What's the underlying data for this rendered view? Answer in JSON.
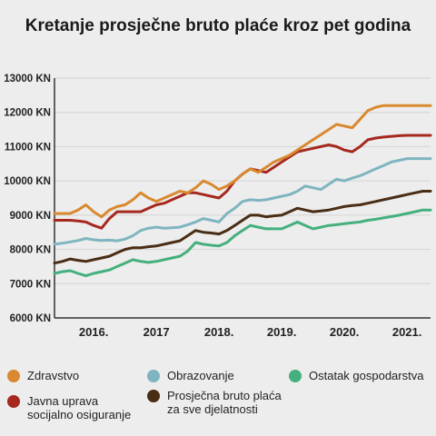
{
  "title": "Kretanje prosječne bruto plaće kroz pet godina",
  "colors": {
    "zdravstvo": "#d9892f",
    "obrazovanje": "#7fb5c0",
    "ostatak": "#45b07d",
    "javna": "#a6281f",
    "prosjek": "#4a2d15",
    "grid": "#d4d4d4",
    "axis": "#333333"
  },
  "legend": [
    {
      "key": "zdravstvo",
      "label": "Zdravstvo",
      "color": "#d9892f"
    },
    {
      "key": "obrazovanje",
      "label": "Obrazovanje",
      "color": "#7fb5c0"
    },
    {
      "key": "ostatak",
      "label": "Ostatak gospodarstva",
      "color": "#45b07d"
    },
    {
      "key": "javna",
      "label": "Javna uprava\nsocijalno osiguranje",
      "color": "#a6281f"
    },
    {
      "key": "prosjek",
      "label": "Prosječna bruto plaća\nza sve djelatnosti",
      "color": "#4a2d15"
    }
  ],
  "chart_data": {
    "type": "line",
    "title": "Kretanje prosječne bruto plaće kroz pet godina",
    "xlabel": "",
    "ylabel": "",
    "ylim": [
      6000,
      13000
    ],
    "xlim": [
      2015.375,
      2021.375
    ],
    "y_ticks": [
      6000,
      7000,
      8000,
      9000,
      10000,
      11000,
      12000,
      13000
    ],
    "y_tick_labels": [
      "6000 KN",
      "7000 KN",
      "8000 KN",
      "9000 KN",
      "10000 KN",
      "11000 KN",
      "12000 KN",
      "13000 KN"
    ],
    "x_ticks": [
      2016,
      2017,
      2018,
      2019,
      2020,
      2021
    ],
    "x_tick_labels": [
      "2016.",
      "2017",
      "2018.",
      "2019.",
      "2020.",
      "2021."
    ],
    "grid": "horizontal",
    "legend_position": "bottom",
    "x": [
      2015.375,
      2015.5,
      2015.625,
      2015.75,
      2015.875,
      2016.0,
      2016.125,
      2016.25,
      2016.375,
      2016.5,
      2016.625,
      2016.75,
      2016.875,
      2017.0,
      2017.125,
      2017.25,
      2017.375,
      2017.5,
      2017.625,
      2017.75,
      2017.875,
      2018.0,
      2018.125,
      2018.25,
      2018.375,
      2018.5,
      2018.625,
      2018.75,
      2018.875,
      2019.0,
      2019.125,
      2019.25,
      2019.375,
      2019.5,
      2019.625,
      2019.75,
      2019.875,
      2020.0,
      2020.125,
      2020.25,
      2020.375,
      2020.5,
      2020.625,
      2020.75,
      2020.875,
      2021.0,
      2021.125,
      2021.25,
      2021.375
    ],
    "series": [
      {
        "name": "Zdravstvo",
        "key": "zdravstvo",
        "values": [
          9050,
          9050,
          9050,
          9150,
          9300,
          9100,
          8950,
          9150,
          9250,
          9300,
          9450,
          9650,
          9500,
          9400,
          9500,
          9600,
          9700,
          9650,
          9800,
          10000,
          9900,
          9750,
          9850,
          10000,
          10200,
          10350,
          10250,
          10400,
          10550,
          10650,
          10750,
          10900,
          11050,
          11200,
          11350,
          11500,
          11650,
          11600,
          11550,
          11800,
          12050,
          12150,
          12200,
          12200,
          12200,
          12200,
          12200,
          12200,
          12200
        ]
      },
      {
        "name": "Obrazovanje",
        "key": "obrazovanje",
        "values": [
          8150,
          8180,
          8220,
          8260,
          8320,
          8280,
          8260,
          8270,
          8250,
          8300,
          8400,
          8550,
          8620,
          8650,
          8620,
          8630,
          8650,
          8720,
          8800,
          8900,
          8850,
          8800,
          9050,
          9200,
          9400,
          9450,
          9430,
          9450,
          9500,
          9550,
          9600,
          9700,
          9850,
          9800,
          9750,
          9900,
          10050,
          10000,
          10080,
          10150,
          10250,
          10350,
          10450,
          10550,
          10600,
          10650,
          10650,
          10650,
          10650
        ]
      },
      {
        "name": "Ostatak gospodarstva",
        "key": "ostatak",
        "values": [
          7300,
          7350,
          7380,
          7300,
          7230,
          7300,
          7350,
          7400,
          7500,
          7600,
          7700,
          7650,
          7620,
          7650,
          7700,
          7750,
          7800,
          7950,
          8200,
          8150,
          8120,
          8100,
          8200,
          8400,
          8550,
          8700,
          8650,
          8600,
          8600,
          8600,
          8700,
          8800,
          8700,
          8600,
          8650,
          8700,
          8720,
          8750,
          8780,
          8800,
          8850,
          8880,
          8920,
          8960,
          9000,
          9050,
          9100,
          9150,
          9150
        ]
      },
      {
        "name": "Javna uprava socijalno osiguranje",
        "key": "javna",
        "values": [
          8850,
          8850,
          8850,
          8830,
          8800,
          8700,
          8620,
          8900,
          9100,
          9100,
          9100,
          9100,
          9200,
          9300,
          9350,
          9450,
          9550,
          9650,
          9650,
          9600,
          9550,
          9500,
          9700,
          10000,
          10200,
          10350,
          10300,
          10250,
          10400,
          10550,
          10700,
          10850,
          10900,
          10950,
          11000,
          11050,
          11000,
          10900,
          10850,
          11000,
          11200,
          11250,
          11280,
          11300,
          11320,
          11330,
          11330,
          11330,
          11330
        ]
      },
      {
        "name": "Prosječna bruto plaća za sve djelatnosti",
        "key": "prosjek",
        "values": [
          7600,
          7650,
          7720,
          7680,
          7650,
          7700,
          7750,
          7800,
          7900,
          8000,
          8050,
          8050,
          8080,
          8100,
          8150,
          8200,
          8250,
          8400,
          8550,
          8500,
          8480,
          8450,
          8550,
          8700,
          8850,
          9000,
          9000,
          8950,
          8980,
          9000,
          9100,
          9200,
          9150,
          9100,
          9120,
          9150,
          9200,
          9250,
          9280,
          9300,
          9350,
          9400,
          9450,
          9500,
          9550,
          9600,
          9650,
          9700,
          9700
        ]
      }
    ]
  }
}
